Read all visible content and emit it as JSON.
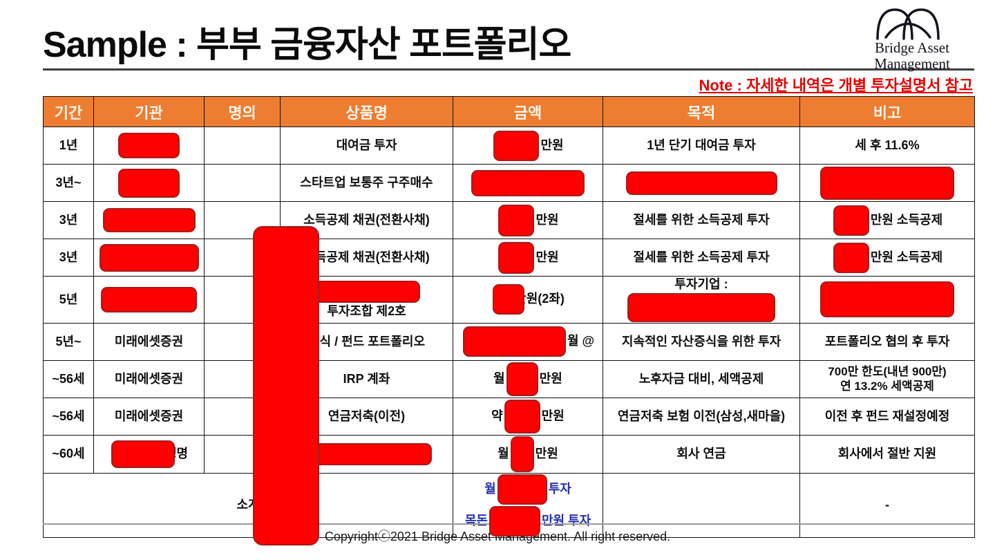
{
  "header": {
    "title": "Sample : 부부 금융자산 포트폴리오",
    "note": "Note : 자세한 내역은 개별 투자설명서 참고",
    "logo": {
      "line1": "Bridge Asset",
      "line2": "Management"
    }
  },
  "colors": {
    "accent_orange": "#ED7D31",
    "redact_red": "#FF0000",
    "redact_border": "#A61C1C",
    "note_red": "#E60000",
    "subtotal_blue": "#2230AE"
  },
  "table": {
    "columns": [
      "기간",
      "기관",
      "명의",
      "상품명",
      "금액",
      "목적",
      "비고"
    ],
    "rows": [
      {
        "cells": [
          {
            "segs": [
              {
                "t": "1년"
              }
            ]
          },
          {
            "segs": [
              {
                "r": [
                  85,
                  33
                ]
              }
            ]
          },
          {
            "segs": []
          },
          {
            "segs": [
              {
                "t": "대여금 투자"
              }
            ]
          },
          {
            "segs": [
              {
                "r": [
                  62,
                  40
                ]
              },
              {
                "t": "만원"
              }
            ]
          },
          {
            "segs": [
              {
                "t": "1년 단기 대여금 투자"
              }
            ]
          },
          {
            "segs": [
              {
                "t": "세 후 11.6%"
              }
            ]
          }
        ]
      },
      {
        "cells": [
          {
            "segs": [
              {
                "t": "3년~"
              }
            ]
          },
          {
            "segs": [
              {
                "r": [
                  85,
                  38
                ]
              }
            ]
          },
          {
            "segs": []
          },
          {
            "segs": [
              {
                "t": "스타트업 보통주 구주매수"
              }
            ]
          },
          {
            "segs": [
              {
                "r": [
                  160,
                  34
                ]
              }
            ]
          },
          {
            "segs": [
              {
                "r": [
                  215,
                  30
                ]
              }
            ]
          },
          {
            "segs": [
              {
                "r": [
                  190,
                  44
                ]
              }
            ]
          }
        ]
      },
      {
        "cells": [
          {
            "segs": [
              {
                "t": "3년"
              }
            ]
          },
          {
            "segs": [
              {
                "r": [
                  130,
                  31
                ]
              }
            ]
          },
          {
            "segs": []
          },
          {
            "segs": [
              {
                "t": "소득공제 채권(전환사채)"
              }
            ]
          },
          {
            "segs": [
              {
                "r": [
                  48,
                  42
                ]
              },
              {
                "t": "만원"
              }
            ]
          },
          {
            "segs": [
              {
                "t": "절세를 위한 소득공제 투자"
              }
            ]
          },
          {
            "segs": [
              {
                "r": [
                  48,
                  40
                ]
              },
              {
                "t": "만원 소득공제"
              }
            ]
          }
        ]
      },
      {
        "cells": [
          {
            "segs": [
              {
                "t": "3년"
              }
            ]
          },
          {
            "segs": [
              {
                "r": [
                  140,
                  36
                ]
              }
            ]
          },
          {
            "segs": []
          },
          {
            "segs": [
              {
                "t": "소득공제 채권(전환사채)"
              }
            ]
          },
          {
            "segs": [
              {
                "r": [
                  48,
                  42
                ]
              },
              {
                "t": "만원"
              }
            ]
          },
          {
            "segs": [
              {
                "t": "절세를 위한 소득공제 투자"
              }
            ]
          },
          {
            "segs": [
              {
                "r": [
                  48,
                  40
                ]
              },
              {
                "t": "만원 소득공제"
              }
            ]
          }
        ]
      },
      {
        "cells": [
          {
            "segs": [
              {
                "t": "5년"
              }
            ]
          },
          {
            "segs": [
              {
                "r": [
                  135,
                  33
                ]
              }
            ]
          },
          {
            "segs": []
          },
          {
            "segs": [
              {
                "r": [
                  150,
                  28
                ]
              },
              {
                "nl": true
              },
              {
                "t": "투자조합 제2호"
              }
            ]
          },
          {
            "segs": [
              {
                "r": [
                  42,
                  40
                ],
                "ov": true
              },
              {
                "t": "만원(2좌)"
              }
            ]
          },
          {
            "segs": [
              {
                "t": "투자기업 : "
              },
              {
                "r": [
                  210,
                  38
                ]
              }
            ]
          },
          {
            "segs": [
              {
                "r": [
                  190,
                  48
                ]
              }
            ]
          }
        ]
      },
      {
        "cells": [
          {
            "segs": [
              {
                "t": "5년~"
              }
            ]
          },
          {
            "segs": [
              {
                "t": "미래에셋증권"
              }
            ]
          },
          {
            "segs": []
          },
          {
            "segs": [
              {
                "t": "주식 / 펀드 포트폴리오"
              }
            ]
          },
          {
            "segs": [
              {
                "r": [
                  145,
                  40
                ]
              },
              {
                "t": "월 @"
              }
            ]
          },
          {
            "segs": [
              {
                "t": "지속적인 자산증식을 위한 투자"
              }
            ]
          },
          {
            "segs": [
              {
                "t": "포트폴리오 협의 후 투자"
              }
            ]
          }
        ]
      },
      {
        "cells": [
          {
            "segs": [
              {
                "t": "~56세"
              }
            ]
          },
          {
            "segs": [
              {
                "t": "미래에셋증권"
              }
            ]
          },
          {
            "segs": []
          },
          {
            "segs": [
              {
                "t": "IRP 계좌"
              }
            ]
          },
          {
            "segs": [
              {
                "t": "월"
              },
              {
                "r": [
                  42,
                  45
                ]
              },
              {
                "t": "만원"
              }
            ]
          },
          {
            "segs": [
              {
                "t": "노후자금 대비, 세액공제"
              }
            ]
          },
          {
            "cls": "small",
            "segs": [
              {
                "t": "700만 한도(내년 900만)"
              },
              {
                "nl": true
              },
              {
                "t": "연 13.2% 세액공제"
              }
            ]
          }
        ]
      },
      {
        "cells": [
          {
            "segs": [
              {
                "t": "~56세"
              }
            ]
          },
          {
            "segs": [
              {
                "t": "미래에셋증권"
              }
            ]
          },
          {
            "segs": []
          },
          {
            "segs": [
              {
                "t": "연금저축(이전)"
              }
            ]
          },
          {
            "segs": [
              {
                "t": "약"
              },
              {
                "r": [
                  48,
                  45
                ]
              },
              {
                "t": "만원"
              }
            ]
          },
          {
            "segs": [
              {
                "t": "연금저축 보험 이전(삼성,새마을)"
              }
            ]
          },
          {
            "segs": [
              {
                "t": "이전 후 펀드 재설정예정"
              }
            ]
          }
        ]
      },
      {
        "cells": [
          {
            "segs": [
              {
                "t": "~60세"
              }
            ]
          },
          {
            "segs": [
              {
                "r": [
                  88,
                  36
                ],
                "ov": true
              },
              {
                "t": "생명"
              }
            ]
          },
          {
            "segs": []
          },
          {
            "segs": [
              {
                "r": [
                  185,
                  28
                ]
              }
            ]
          },
          {
            "segs": [
              {
                "t": "월"
              },
              {
                "r": [
                  30,
                  48
                ]
              },
              {
                "t": "만원"
              }
            ]
          },
          {
            "segs": [
              {
                "t": "회사 연금"
              }
            ]
          },
          {
            "segs": [
              {
                "t": "회사에서 절반 지원"
              }
            ]
          }
        ]
      },
      {
        "cls": "subtotal",
        "cells": [
          {
            "span": 4,
            "segs": [
              {
                "t": "소계"
              }
            ]
          },
          {
            "cls": "blue",
            "segs": [
              {
                "t": "월"
              },
              {
                "r": [
                  68,
                  40
                ]
              },
              {
                "t": "투자"
              },
              {
                "nl": true
              },
              {
                "t": "목돈"
              },
              {
                "r": [
                  70,
                  40
                ]
              },
              {
                "t": "만원 투자"
              }
            ]
          },
          {
            "segs": []
          },
          {
            "segs": [
              {
                "t": "-"
              }
            ]
          }
        ]
      }
    ]
  },
  "footer": {
    "copyright": "Copyrightⓒ2021 Bridge Asset Management. All right reserved."
  }
}
